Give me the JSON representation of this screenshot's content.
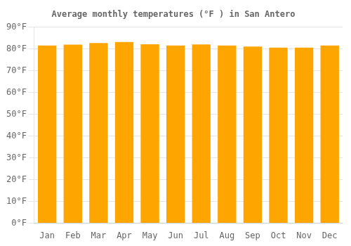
{
  "chart_data": {
    "type": "bar",
    "title": "Average monthly temperatures (°F ) in San Antero",
    "categories": [
      "Jan",
      "Feb",
      "Mar",
      "Apr",
      "May",
      "Jun",
      "Jul",
      "Aug",
      "Sep",
      "Oct",
      "Nov",
      "Dec"
    ],
    "values": [
      81.5,
      81.9,
      82.6,
      83.1,
      82.1,
      81.5,
      82.0,
      81.5,
      81.0,
      80.5,
      80.5,
      81.5
    ],
    "color": "#FFA500",
    "ylim": [
      0,
      90
    ],
    "yticks": [
      {
        "value": 0,
        "label": "0°F"
      },
      {
        "value": 10,
        "label": "10°F"
      },
      {
        "value": 20,
        "label": "20°F"
      },
      {
        "value": 30,
        "label": "30°F"
      },
      {
        "value": 40,
        "label": "40°F"
      },
      {
        "value": 50,
        "label": "50°F"
      },
      {
        "value": 60,
        "label": "60°F"
      },
      {
        "value": 70,
        "label": "70°F"
      },
      {
        "value": 80,
        "label": "80°F"
      },
      {
        "value": 90,
        "label": "90°F"
      }
    ],
    "grid": true
  }
}
